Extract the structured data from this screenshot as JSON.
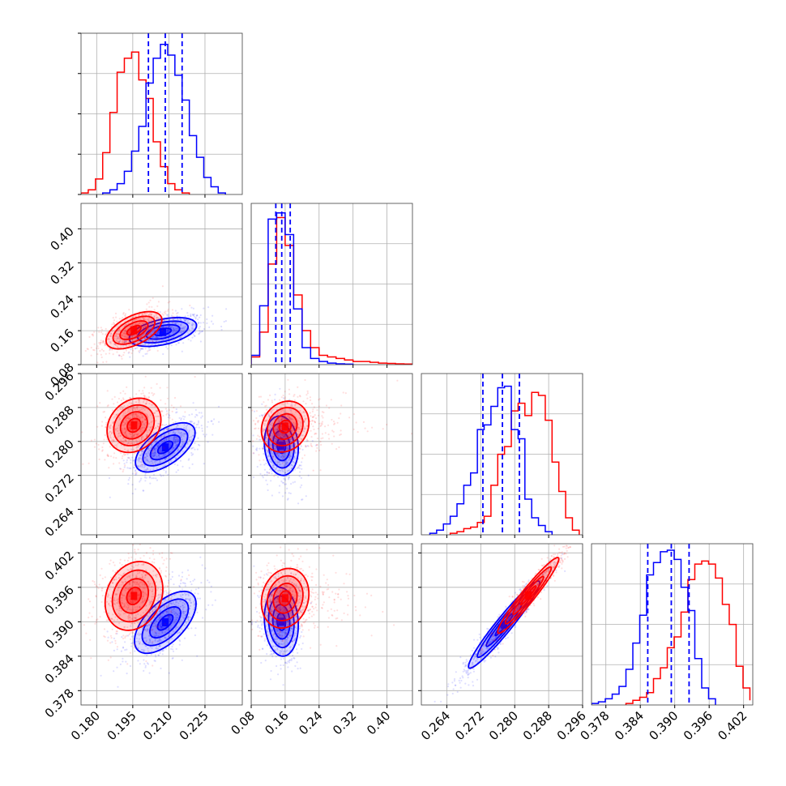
{
  "chart_data": {
    "type": "corner",
    "description_of_layout": "lower-triangular corner plot",
    "grid": true,
    "colors": {
      "red": "#ff0000",
      "blue": "#0000ff"
    },
    "parameters": [
      {
        "range": [
          0.1735,
          0.2405
        ],
        "ticks": [
          0.18,
          0.195,
          0.21,
          0.225
        ],
        "tick_labels": [
          "0.180",
          "0.195",
          "0.210",
          "0.225"
        ],
        "quantiles_blue": [
          0.2015,
          0.2085,
          0.2155
        ],
        "marginal_red": {
          "bin_edges": [
            0.1735,
            0.1765,
            0.1795,
            0.1825,
            0.1855,
            0.1885,
            0.1915,
            0.1945,
            0.1975,
            0.2005,
            0.2035,
            0.2065,
            0.2095,
            0.2125,
            0.2155,
            0.2185
          ],
          "counts": [
            0.01,
            0.03,
            0.1,
            0.27,
            0.53,
            0.79,
            0.88,
            0.92,
            0.74,
            0.62,
            0.34,
            0.18,
            0.07,
            0.03,
            0.01
          ]
        },
        "marginal_blue": {
          "bin_edges": [
            0.1825,
            0.1855,
            0.1885,
            0.1915,
            0.1945,
            0.1975,
            0.2005,
            0.2035,
            0.2065,
            0.2095,
            0.2125,
            0.2155,
            0.2185,
            0.2215,
            0.2245,
            0.2275,
            0.2305,
            0.2335
          ],
          "counts": [
            0.01,
            0.03,
            0.07,
            0.15,
            0.28,
            0.44,
            0.72,
            0.88,
            0.97,
            0.9,
            0.77,
            0.61,
            0.38,
            0.24,
            0.11,
            0.05,
            0.01
          ]
        }
      },
      {
        "range": [
          0.08,
          0.46
        ],
        "ticks": [
          0.08,
          0.16,
          0.24,
          0.32,
          0.4
        ],
        "tick_labels": [
          "0.08",
          "0.16",
          "0.24",
          "0.32",
          "0.40"
        ],
        "quantiles_blue": [
          0.138,
          0.152,
          0.172
        ],
        "marginal_red": {
          "bin_edges": [
            0.08,
            0.1,
            0.12,
            0.14,
            0.16,
            0.18,
            0.2,
            0.22,
            0.24,
            0.26,
            0.28,
            0.3,
            0.32,
            0.34,
            0.36,
            0.38,
            0.4,
            0.42,
            0.44,
            0.46
          ],
          "counts": [
            0.05,
            0.21,
            0.65,
            0.95,
            0.77,
            0.45,
            0.22,
            0.11,
            0.06,
            0.05,
            0.04,
            0.03,
            0.02,
            0.02,
            0.015,
            0.01,
            0.008,
            0.005,
            0.004
          ]
        },
        "marginal_blue": {
          "bin_edges": [
            0.08,
            0.1,
            0.12,
            0.14,
            0.16,
            0.18,
            0.2,
            0.22,
            0.24,
            0.26,
            0.28,
            0.3,
            0.32
          ],
          "counts": [
            0.06,
            0.38,
            0.94,
            0.98,
            0.84,
            0.36,
            0.11,
            0.04,
            0.02,
            0.01,
            0.005,
            0.003
          ]
        }
      },
      {
        "range": [
          0.258,
          0.296
        ],
        "ticks": [
          0.264,
          0.272,
          0.28,
          0.288,
          0.296
        ],
        "tick_labels": [
          "0.264",
          "0.272",
          "0.280",
          "0.288",
          "0.296"
        ],
        "quantiles_blue": [
          0.2725,
          0.2771,
          0.2811
        ],
        "marginal_red": {
          "bin_edges": [
            0.2648,
            0.2664,
            0.268,
            0.2696,
            0.2712,
            0.2728,
            0.2744,
            0.276,
            0.2776,
            0.2792,
            0.2808,
            0.2824,
            0.284,
            0.2856,
            0.2872,
            0.2888,
            0.2904,
            0.292,
            0.2936,
            0.2952
          ],
          "counts": [
            0.01,
            0.02,
            0.04,
            0.05,
            0.08,
            0.12,
            0.32,
            0.52,
            0.57,
            0.8,
            0.85,
            0.77,
            0.92,
            0.9,
            0.74,
            0.47,
            0.28,
            0.11,
            0.03
          ]
        },
        "marginal_blue": {
          "bin_edges": [
            0.26,
            0.2616,
            0.2632,
            0.2648,
            0.2664,
            0.268,
            0.2696,
            0.2712,
            0.2728,
            0.2744,
            0.276,
            0.2776,
            0.2792,
            0.2808,
            0.2824,
            0.284,
            0.2856,
            0.2872,
            0.2888
          ],
          "counts": [
            0.01,
            0.03,
            0.07,
            0.12,
            0.2,
            0.32,
            0.4,
            0.68,
            0.71,
            0.83,
            0.95,
            0.96,
            0.68,
            0.62,
            0.23,
            0.11,
            0.06,
            0.02
          ]
        }
      },
      {
        "range": [
          0.3755,
          0.4036
        ],
        "ticks": [
          0.378,
          0.384,
          0.39,
          0.396,
          0.402
        ],
        "tick_labels": [
          "0.378",
          "0.384",
          "0.390",
          "0.396",
          "0.402"
        ],
        "quantiles_blue": [
          0.3853,
          0.3894,
          0.3925
        ],
        "marginal_red": {
          "bin_edges": [
            0.3815,
            0.3827,
            0.3839,
            0.3851,
            0.3863,
            0.3875,
            0.3887,
            0.3899,
            0.3911,
            0.3923,
            0.3935,
            0.3947,
            0.3959,
            0.3971,
            0.3983,
            0.3995,
            0.4007,
            0.4019,
            0.4031
          ],
          "counts": [
            0.01,
            0.03,
            0.05,
            0.08,
            0.17,
            0.24,
            0.37,
            0.44,
            0.6,
            0.81,
            0.91,
            0.93,
            0.91,
            0.82,
            0.65,
            0.52,
            0.25,
            0.11,
            0.03
          ]
        },
        "marginal_blue": {
          "bin_edges": [
            0.3755,
            0.3767,
            0.3779,
            0.3791,
            0.3803,
            0.3815,
            0.3827,
            0.3839,
            0.3851,
            0.3863,
            0.3875,
            0.3887,
            0.3899,
            0.3911,
            0.3923,
            0.3935,
            0.3947,
            0.3959,
            0.3971
          ],
          "counts": [
            0.01,
            0.02,
            0.04,
            0.07,
            0.12,
            0.23,
            0.4,
            0.58,
            0.84,
            0.92,
            0.99,
            1.0,
            0.94,
            0.76,
            0.61,
            0.3,
            0.11,
            0.04
          ]
        }
      }
    ],
    "pairs": [
      {
        "x": 0,
        "y": 1,
        "red": {
          "mean": [
            0.1955,
            0.161
          ],
          "sd": [
            0.0058,
            0.022
          ],
          "corr": 0.55
        },
        "blue": {
          "mean": [
            0.2075,
            0.157
          ],
          "sd": [
            0.007,
            0.017
          ],
          "corr": 0.45
        }
      },
      {
        "x": 0,
        "y": 2,
        "red": {
          "mean": [
            0.1955,
            0.2838
          ],
          "sd": [
            0.0056,
            0.0032
          ],
          "corr": 0.2
        },
        "blue": {
          "mean": [
            0.2085,
            0.2786
          ],
          "sd": [
            0.0062,
            0.0029
          ],
          "corr": 0.6
        }
      },
      {
        "x": 0,
        "y": 3,
        "red": {
          "mean": [
            0.1955,
            0.3945
          ],
          "sd": [
            0.006,
            0.003
          ],
          "corr": 0.2
        },
        "blue": {
          "mean": [
            0.2085,
            0.3899
          ],
          "sd": [
            0.0064,
            0.0027
          ],
          "corr": 0.6
        }
      },
      {
        "x": 1,
        "y": 2,
        "red": {
          "mean": [
            0.16,
            0.2835
          ],
          "sd": [
            0.028,
            0.003
          ],
          "corr": 0.15
        },
        "blue": {
          "mean": [
            0.151,
            0.279
          ],
          "sd": [
            0.02,
            0.0035
          ],
          "corr": -0.1
        }
      },
      {
        "x": 1,
        "y": 3,
        "red": {
          "mean": [
            0.16,
            0.3941
          ],
          "sd": [
            0.028,
            0.0026
          ],
          "corr": 0.15
        },
        "blue": {
          "mean": [
            0.151,
            0.39
          ],
          "sd": [
            0.02,
            0.003
          ],
          "corr": -0.1
        }
      },
      {
        "x": 2,
        "y": 3,
        "red": {
          "mean": [
            0.2832,
            0.3946
          ],
          "sd": [
            0.0036,
            0.0033
          ],
          "corr": 0.96
        },
        "blue": {
          "mean": [
            0.2775,
            0.3895
          ],
          "sd": [
            0.0042,
            0.0038
          ],
          "corr": 0.96
        }
      }
    ]
  }
}
